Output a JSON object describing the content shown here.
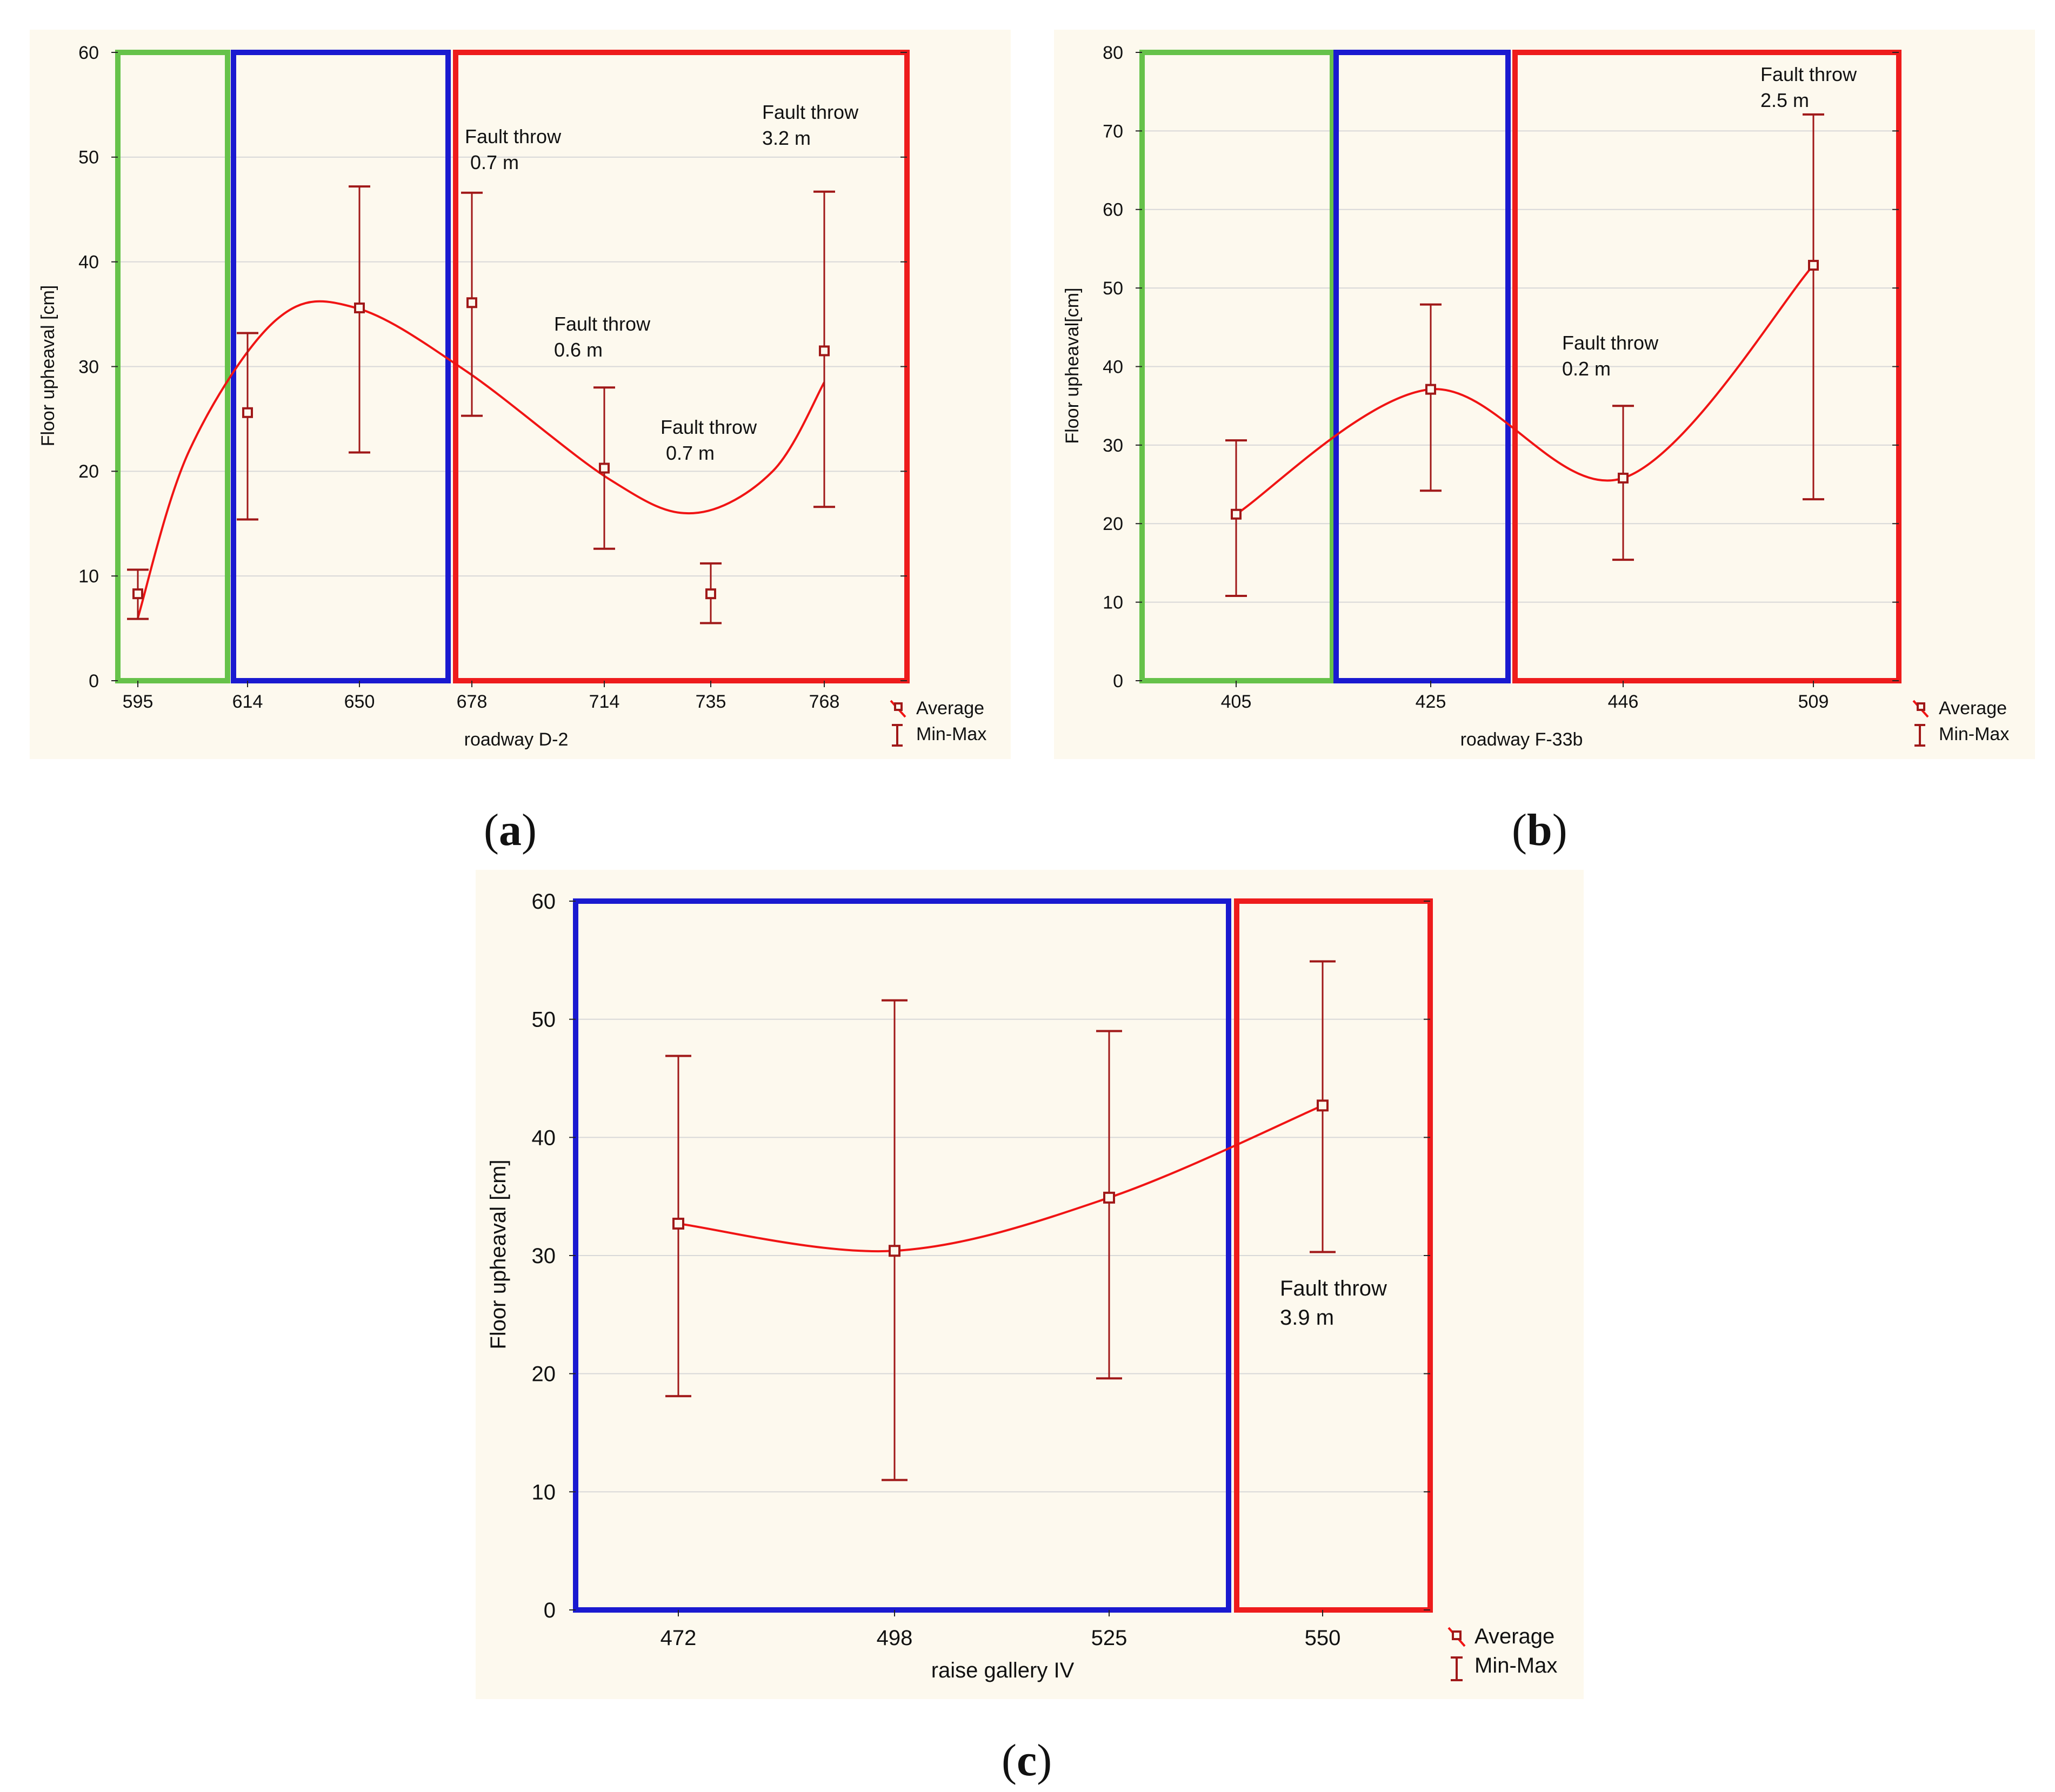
{
  "figure": {
    "caption_a_letter": "a",
    "caption_b_letter": "b",
    "caption_c_letter": "c"
  },
  "colors": {
    "background_panel": "#fdf9ee",
    "series": "#f01414",
    "marker": "#a01818",
    "green_box": "#66c24a",
    "blue_box": "#1a1ad0",
    "red_box": "#ee1c1c",
    "grid": "#d8d8d8"
  },
  "chart_data": [
    {
      "id": "a",
      "type": "line",
      "xlabel": "roadway D-2",
      "ylabel": "Floor upheaval [cm]",
      "categories": [
        "595",
        "614",
        "650",
        "678",
        "714",
        "735",
        "768"
      ],
      "ylim": [
        0,
        60
      ],
      "yticks": [
        0,
        10,
        20,
        30,
        40,
        50,
        60
      ],
      "grid": true,
      "series": [
        {
          "name": "Average",
          "values": [
            8.3,
            25.6,
            35.6,
            36.1,
            20.3,
            8.3,
            31.5
          ]
        },
        {
          "name": "Min",
          "values": [
            5.9,
            15.4,
            21.8,
            25.3,
            12.6,
            5.5,
            16.6
          ]
        },
        {
          "name": "Max",
          "values": [
            10.6,
            33.2,
            47.2,
            46.6,
            28.0,
            11.2,
            46.7
          ]
        }
      ],
      "fit_curve": {
        "x_range": [
          595,
          768
        ],
        "points": [
          [
            595,
            6
          ],
          [
            608,
            22
          ],
          [
            630,
            34.5
          ],
          [
            650,
            35.6
          ],
          [
            678,
            29.5
          ],
          [
            714,
            19.2
          ],
          [
            735,
            16
          ],
          [
            755,
            20
          ],
          [
            768,
            28.5
          ]
        ]
      },
      "legend": {
        "average_label": "Average",
        "minmax_label": "Min-Max"
      },
      "annotations": [
        {
          "line1": "Fault throw",
          "line2": " 0.7 m"
        },
        {
          "line1": "Fault throw",
          "line2": "0.6 m"
        },
        {
          "line1": "Fault throw",
          "line2": " 0.7 m"
        },
        {
          "line1": "Fault throw",
          "line2": "3.2 m"
        }
      ]
    },
    {
      "id": "b",
      "type": "line",
      "xlabel": "roadway F-33b",
      "ylabel": "Floor upheaval[cm]",
      "categories": [
        "405",
        "425",
        "446",
        "509"
      ],
      "ylim": [
        0,
        80
      ],
      "yticks": [
        0,
        10,
        20,
        30,
        40,
        50,
        60,
        70,
        80
      ],
      "grid": true,
      "series": [
        {
          "name": "Average",
          "values": [
            21.2,
            37.1,
            25.8,
            52.9
          ]
        },
        {
          "name": "Min",
          "values": [
            10.8,
            24.2,
            15.4,
            23.1
          ]
        },
        {
          "name": "Max",
          "values": [
            30.6,
            47.9,
            35.0,
            72.1
          ]
        }
      ],
      "legend": {
        "average_label": "Average",
        "minmax_label": "Min-Max"
      },
      "annotations": [
        {
          "line1": "Fault throw",
          "line2": "0.2 m"
        },
        {
          "line1": "Fault throw",
          "line2": "2.5 m"
        }
      ]
    },
    {
      "id": "c",
      "type": "line",
      "xlabel": "raise gallery IV",
      "ylabel": "Floor upheaval [cm]",
      "categories": [
        "472",
        "498",
        "525",
        "550"
      ],
      "ylim": [
        0,
        60
      ],
      "yticks": [
        0,
        10,
        20,
        30,
        40,
        50,
        60
      ],
      "grid": true,
      "series": [
        {
          "name": "Average",
          "values": [
            32.7,
            30.4,
            34.9,
            42.7
          ]
        },
        {
          "name": "Min",
          "values": [
            18.1,
            11.0,
            19.6,
            30.3
          ]
        },
        {
          "name": "Max",
          "values": [
            46.9,
            51.6,
            49.0,
            54.9
          ]
        }
      ],
      "legend": {
        "average_label": "Average",
        "minmax_label": "Min-Max"
      },
      "annotations": [
        {
          "line1": "Fault throw",
          "line2": "3.9 m"
        }
      ]
    }
  ]
}
